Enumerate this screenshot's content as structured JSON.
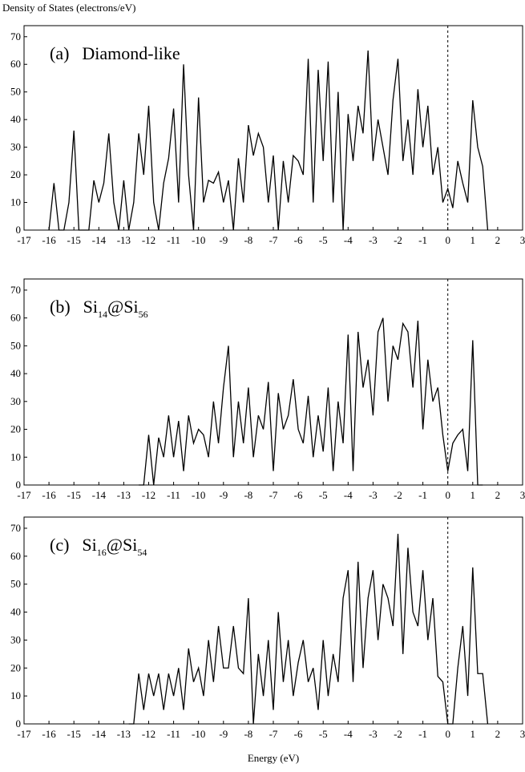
{
  "y_label": "Density of States (electrons/eV)",
  "x_label": "Energy (eV)",
  "chart_data": [
    {
      "type": "line",
      "label": "(a)",
      "formula": [
        "Diamond-like"
      ],
      "color": "#000000",
      "vline": 0,
      "xlim": [
        -17,
        3
      ],
      "ylim": [
        0,
        74
      ],
      "xticks": [
        -17,
        -16,
        -15,
        -14,
        -13,
        -12,
        -11,
        -10,
        -9,
        -8,
        -7,
        -6,
        -5,
        -4,
        -3,
        -2,
        -1,
        0,
        1,
        2,
        3
      ],
      "yticks": [
        0,
        10,
        20,
        30,
        40,
        50,
        60,
        70
      ],
      "x": [
        -16.0,
        -15.8,
        -15.6,
        -15.4,
        -15.2,
        -15.0,
        -14.8,
        -14.6,
        -14.4,
        -14.2,
        -14.0,
        -13.8,
        -13.6,
        -13.4,
        -13.2,
        -13.0,
        -12.8,
        -12.6,
        -12.4,
        -12.2,
        -12.0,
        -11.8,
        -11.6,
        -11.4,
        -11.2,
        -11.0,
        -10.8,
        -10.6,
        -10.4,
        -10.2,
        -10.0,
        -9.8,
        -9.6,
        -9.4,
        -9.2,
        -9.0,
        -8.8,
        -8.6,
        -8.4,
        -8.2,
        -8.0,
        -7.8,
        -7.6,
        -7.4,
        -7.2,
        -7.0,
        -6.8,
        -6.6,
        -6.4,
        -6.2,
        -6.0,
        -5.8,
        -5.6,
        -5.4,
        -5.2,
        -5.0,
        -4.8,
        -4.6,
        -4.4,
        -4.2,
        -4.0,
        -3.8,
        -3.6,
        -3.4,
        -3.2,
        -3.0,
        -2.8,
        -2.6,
        -2.4,
        -2.2,
        -2.0,
        -1.8,
        -1.6,
        -1.4,
        -1.2,
        -1.0,
        -0.8,
        -0.6,
        -0.4,
        -0.2,
        0.0,
        0.2,
        0.4,
        0.6,
        0.8,
        1.0,
        1.2,
        1.4,
        1.6
      ],
      "values": [
        0,
        17,
        0,
        0,
        10,
        36,
        0,
        0,
        0,
        18,
        10,
        17,
        35,
        10,
        0,
        18,
        0,
        10,
        35,
        20,
        45,
        10,
        0,
        17,
        26,
        44,
        10,
        60,
        20,
        0,
        48,
        10,
        18,
        17,
        21,
        10,
        18,
        0,
        26,
        10,
        38,
        27,
        35,
        30,
        10,
        27,
        0,
        25,
        10,
        27,
        25,
        20,
        62,
        10,
        58,
        25,
        61,
        10,
        50,
        0,
        42,
        25,
        45,
        35,
        65,
        25,
        40,
        30,
        20,
        47,
        62,
        25,
        40,
        20,
        51,
        30,
        45,
        20,
        30,
        10,
        15,
        8,
        25,
        17,
        10,
        47,
        30,
        23,
        0
      ]
    },
    {
      "type": "line",
      "label": "(b)",
      "formula": [
        "Si",
        "14",
        "@Si",
        "56"
      ],
      "color": "#000000",
      "vline": 0,
      "xlim": [
        -17,
        3
      ],
      "ylim": [
        0,
        74
      ],
      "xticks": [
        -17,
        -16,
        -15,
        -14,
        -13,
        -12,
        -11,
        -10,
        -9,
        -8,
        -7,
        -6,
        -5,
        -4,
        -3,
        -2,
        -1,
        0,
        1,
        2,
        3
      ],
      "yticks": [
        0,
        10,
        20,
        30,
        40,
        50,
        60,
        70
      ],
      "x": [
        -12.4,
        -12.2,
        -12.0,
        -11.8,
        -11.6,
        -11.4,
        -11.2,
        -11.0,
        -10.8,
        -10.6,
        -10.4,
        -10.2,
        -10.0,
        -9.8,
        -9.6,
        -9.4,
        -9.2,
        -9.0,
        -8.8,
        -8.6,
        -8.4,
        -8.2,
        -8.0,
        -7.8,
        -7.6,
        -7.4,
        -7.2,
        -7.0,
        -6.8,
        -6.6,
        -6.4,
        -6.2,
        -6.0,
        -5.8,
        -5.6,
        -5.4,
        -5.2,
        -5.0,
        -4.8,
        -4.6,
        -4.4,
        -4.2,
        -4.0,
        -3.8,
        -3.6,
        -3.4,
        -3.2,
        -3.0,
        -2.8,
        -2.6,
        -2.4,
        -2.2,
        -2.0,
        -1.8,
        -1.6,
        -1.4,
        -1.2,
        -1.0,
        -0.8,
        -0.6,
        -0.4,
        -0.2,
        0.0,
        0.2,
        0.4,
        0.6,
        0.8,
        1.0,
        1.2,
        1.4
      ],
      "values": [
        0,
        0,
        18,
        0,
        17,
        10,
        25,
        10,
        23,
        5,
        25,
        15,
        20,
        18,
        10,
        30,
        15,
        35,
        50,
        10,
        30,
        15,
        35,
        10,
        25,
        20,
        37,
        5,
        33,
        20,
        25,
        38,
        20,
        15,
        32,
        10,
        25,
        12,
        35,
        5,
        30,
        15,
        54,
        5,
        55,
        35,
        45,
        25,
        55,
        60,
        30,
        50,
        45,
        58,
        55,
        35,
        59,
        20,
        45,
        30,
        35,
        18,
        5,
        15,
        18,
        20,
        5,
        52,
        0,
        0
      ]
    },
    {
      "type": "line",
      "label": "(c)",
      "formula": [
        "Si",
        "16",
        "@Si",
        "54"
      ],
      "color": "#000000",
      "vline": 0,
      "xlim": [
        -17,
        3
      ],
      "ylim": [
        0,
        74
      ],
      "xticks": [
        -17,
        -16,
        -15,
        -14,
        -13,
        -12,
        -11,
        -10,
        -9,
        -8,
        -7,
        -6,
        -5,
        -4,
        -3,
        -2,
        -1,
        0,
        1,
        2,
        3
      ],
      "yticks": [
        0,
        10,
        20,
        30,
        40,
        50,
        60,
        70
      ],
      "x": [
        -12.8,
        -12.6,
        -12.4,
        -12.2,
        -12.0,
        -11.8,
        -11.6,
        -11.4,
        -11.2,
        -11.0,
        -10.8,
        -10.6,
        -10.4,
        -10.2,
        -10.0,
        -9.8,
        -9.6,
        -9.4,
        -9.2,
        -9.0,
        -8.8,
        -8.6,
        -8.4,
        -8.2,
        -8.0,
        -7.8,
        -7.6,
        -7.4,
        -7.2,
        -7.0,
        -6.8,
        -6.6,
        -6.4,
        -6.2,
        -6.0,
        -5.8,
        -5.6,
        -5.4,
        -5.2,
        -5.0,
        -4.8,
        -4.6,
        -4.4,
        -4.2,
        -4.0,
        -3.8,
        -3.6,
        -3.4,
        -3.2,
        -3.0,
        -2.8,
        -2.6,
        -2.4,
        -2.2,
        -2.0,
        -1.8,
        -1.6,
        -1.4,
        -1.2,
        -1.0,
        -0.8,
        -0.6,
        -0.4,
        -0.2,
        0.0,
        0.2,
        0.4,
        0.6,
        0.8,
        1.0,
        1.2,
        1.4,
        1.6
      ],
      "values": [
        0,
        0,
        18,
        5,
        18,
        10,
        18,
        5,
        18,
        10,
        20,
        5,
        27,
        15,
        20,
        10,
        30,
        15,
        35,
        20,
        20,
        35,
        20,
        18,
        45,
        0,
        25,
        10,
        30,
        5,
        40,
        15,
        30,
        10,
        22,
        30,
        15,
        20,
        5,
        30,
        10,
        25,
        15,
        45,
        55,
        15,
        58,
        20,
        45,
        55,
        30,
        50,
        45,
        35,
        68,
        25,
        63,
        40,
        35,
        55,
        30,
        45,
        17,
        15,
        0,
        0,
        20,
        35,
        10,
        56,
        18,
        18,
        0
      ]
    }
  ]
}
